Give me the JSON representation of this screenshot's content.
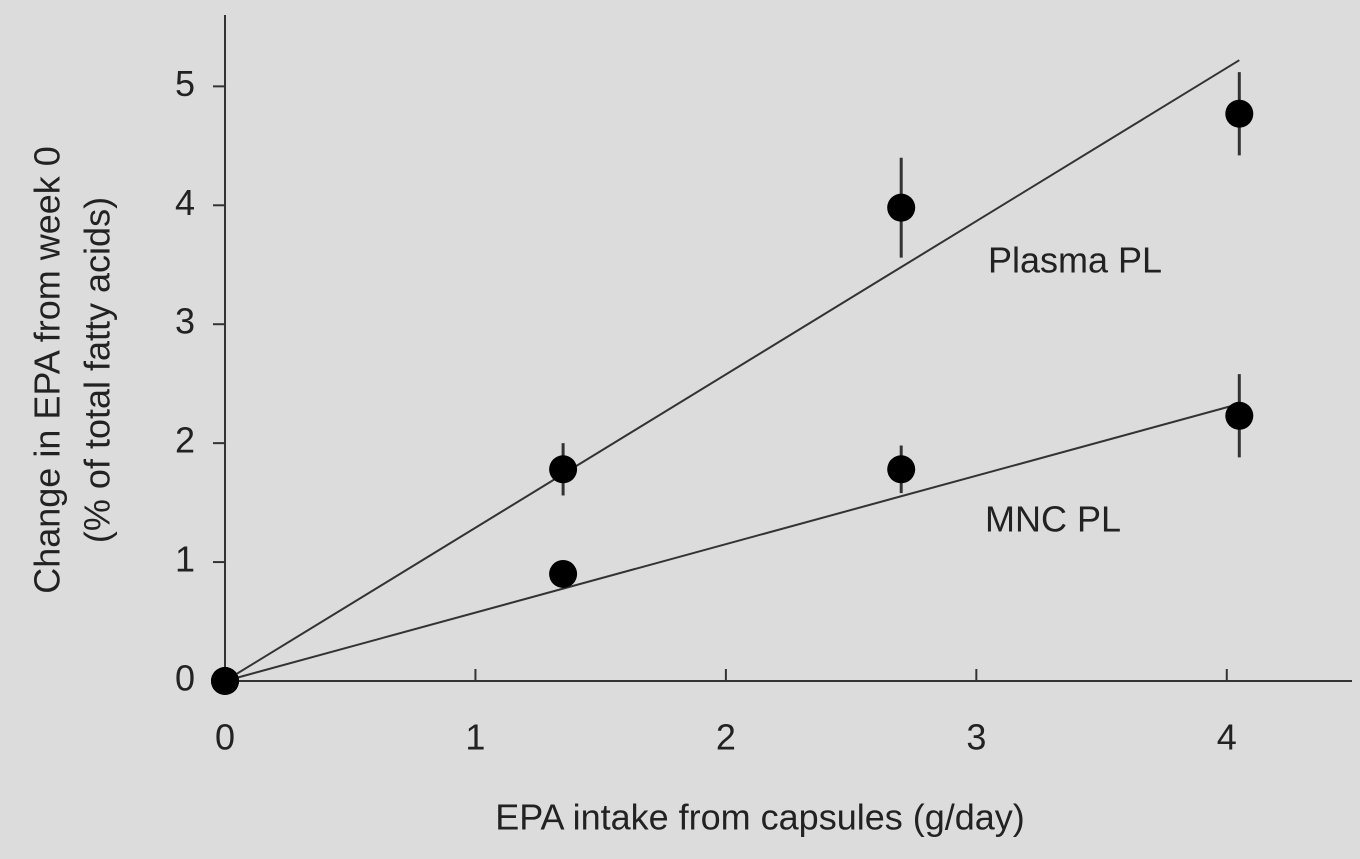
{
  "chart_data": {
    "type": "scatter",
    "xlabel": "EPA intake from capsules (g/day)",
    "ylabel": [
      "Change in EPA from week 0",
      "(% of total fatty acids)"
    ],
    "x": [
      0,
      1.35,
      2.7,
      4.05
    ],
    "series": [
      {
        "name": "Plasma PL",
        "color": "#000000",
        "values": [
          0,
          1.78,
          3.98,
          4.77
        ],
        "errors": [
          0,
          0.22,
          0.42,
          0.35
        ],
        "fit_x": [
          0,
          4.05
        ],
        "fit_y": [
          0,
          5.22
        ]
      },
      {
        "name": "MNC PL",
        "color": "#000000",
        "values": [
          0,
          0.9,
          1.78,
          2.23
        ],
        "errors": [
          0,
          0,
          0.2,
          0.35
        ],
        "fit_x": [
          0,
          4.05
        ],
        "fit_y": [
          0,
          2.33
        ]
      }
    ],
    "xlim": [
      0,
      4.5
    ],
    "ylim": [
      0,
      5.6
    ],
    "xticks": [
      0,
      1,
      2,
      3,
      4
    ],
    "yticks": [
      0,
      1,
      2,
      3,
      4,
      5
    ]
  }
}
